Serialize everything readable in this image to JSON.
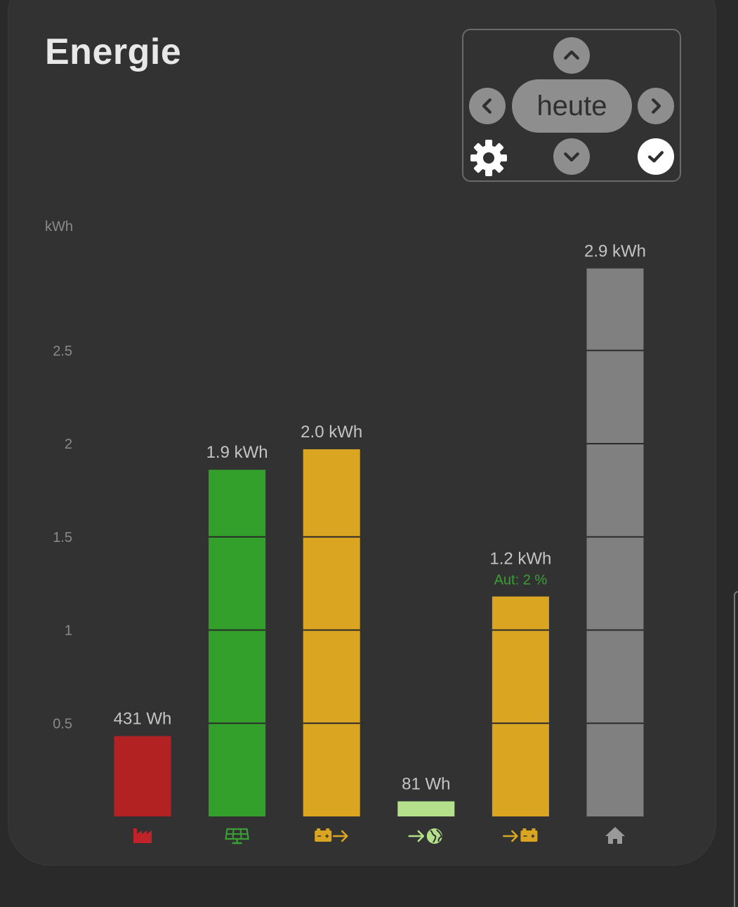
{
  "title": "Energie",
  "nav": {
    "period_label": "heute"
  },
  "chart_data": {
    "type": "bar",
    "ylabel": "kWh",
    "ylim": [
      0,
      2.95
    ],
    "yticks": [
      {
        "value": 0.5,
        "label": "0.5"
      },
      {
        "value": 1,
        "label": "1"
      },
      {
        "value": 1.5,
        "label": "1.5"
      },
      {
        "value": 2,
        "label": "2"
      },
      {
        "value": 2.5,
        "label": "2.5"
      }
    ],
    "grid": false,
    "bars": [
      {
        "category": "factory-icon",
        "value": 0.431,
        "label": "431 Wh",
        "color": "#b22222",
        "icon_color": "#c0242a"
      },
      {
        "category": "solar-panel-icon",
        "value": 1.86,
        "label": "1.9 kWh",
        "color": "#33a02c",
        "icon_color": "#3aa035"
      },
      {
        "category": "battery-discharge-icon",
        "value": 1.97,
        "label": "2.0 kWh",
        "color": "#daa520",
        "icon_color": "#daa520"
      },
      {
        "category": "grid-feed-in-icon",
        "value": 0.081,
        "label": "81 Wh",
        "color": "#b4e08c",
        "icon_color": "#b4e08c"
      },
      {
        "category": "battery-charge-icon",
        "value": 1.18,
        "label": "1.2 kWh",
        "sublabel": "Aut: 2 %",
        "sublabel_color": "#3aa035",
        "color": "#daa520",
        "icon_color": "#daa520"
      },
      {
        "category": "home-icon",
        "value": 2.94,
        "label": "2.9 kWh",
        "color": "#808080",
        "icon_color": "#9a9a9a"
      }
    ]
  }
}
